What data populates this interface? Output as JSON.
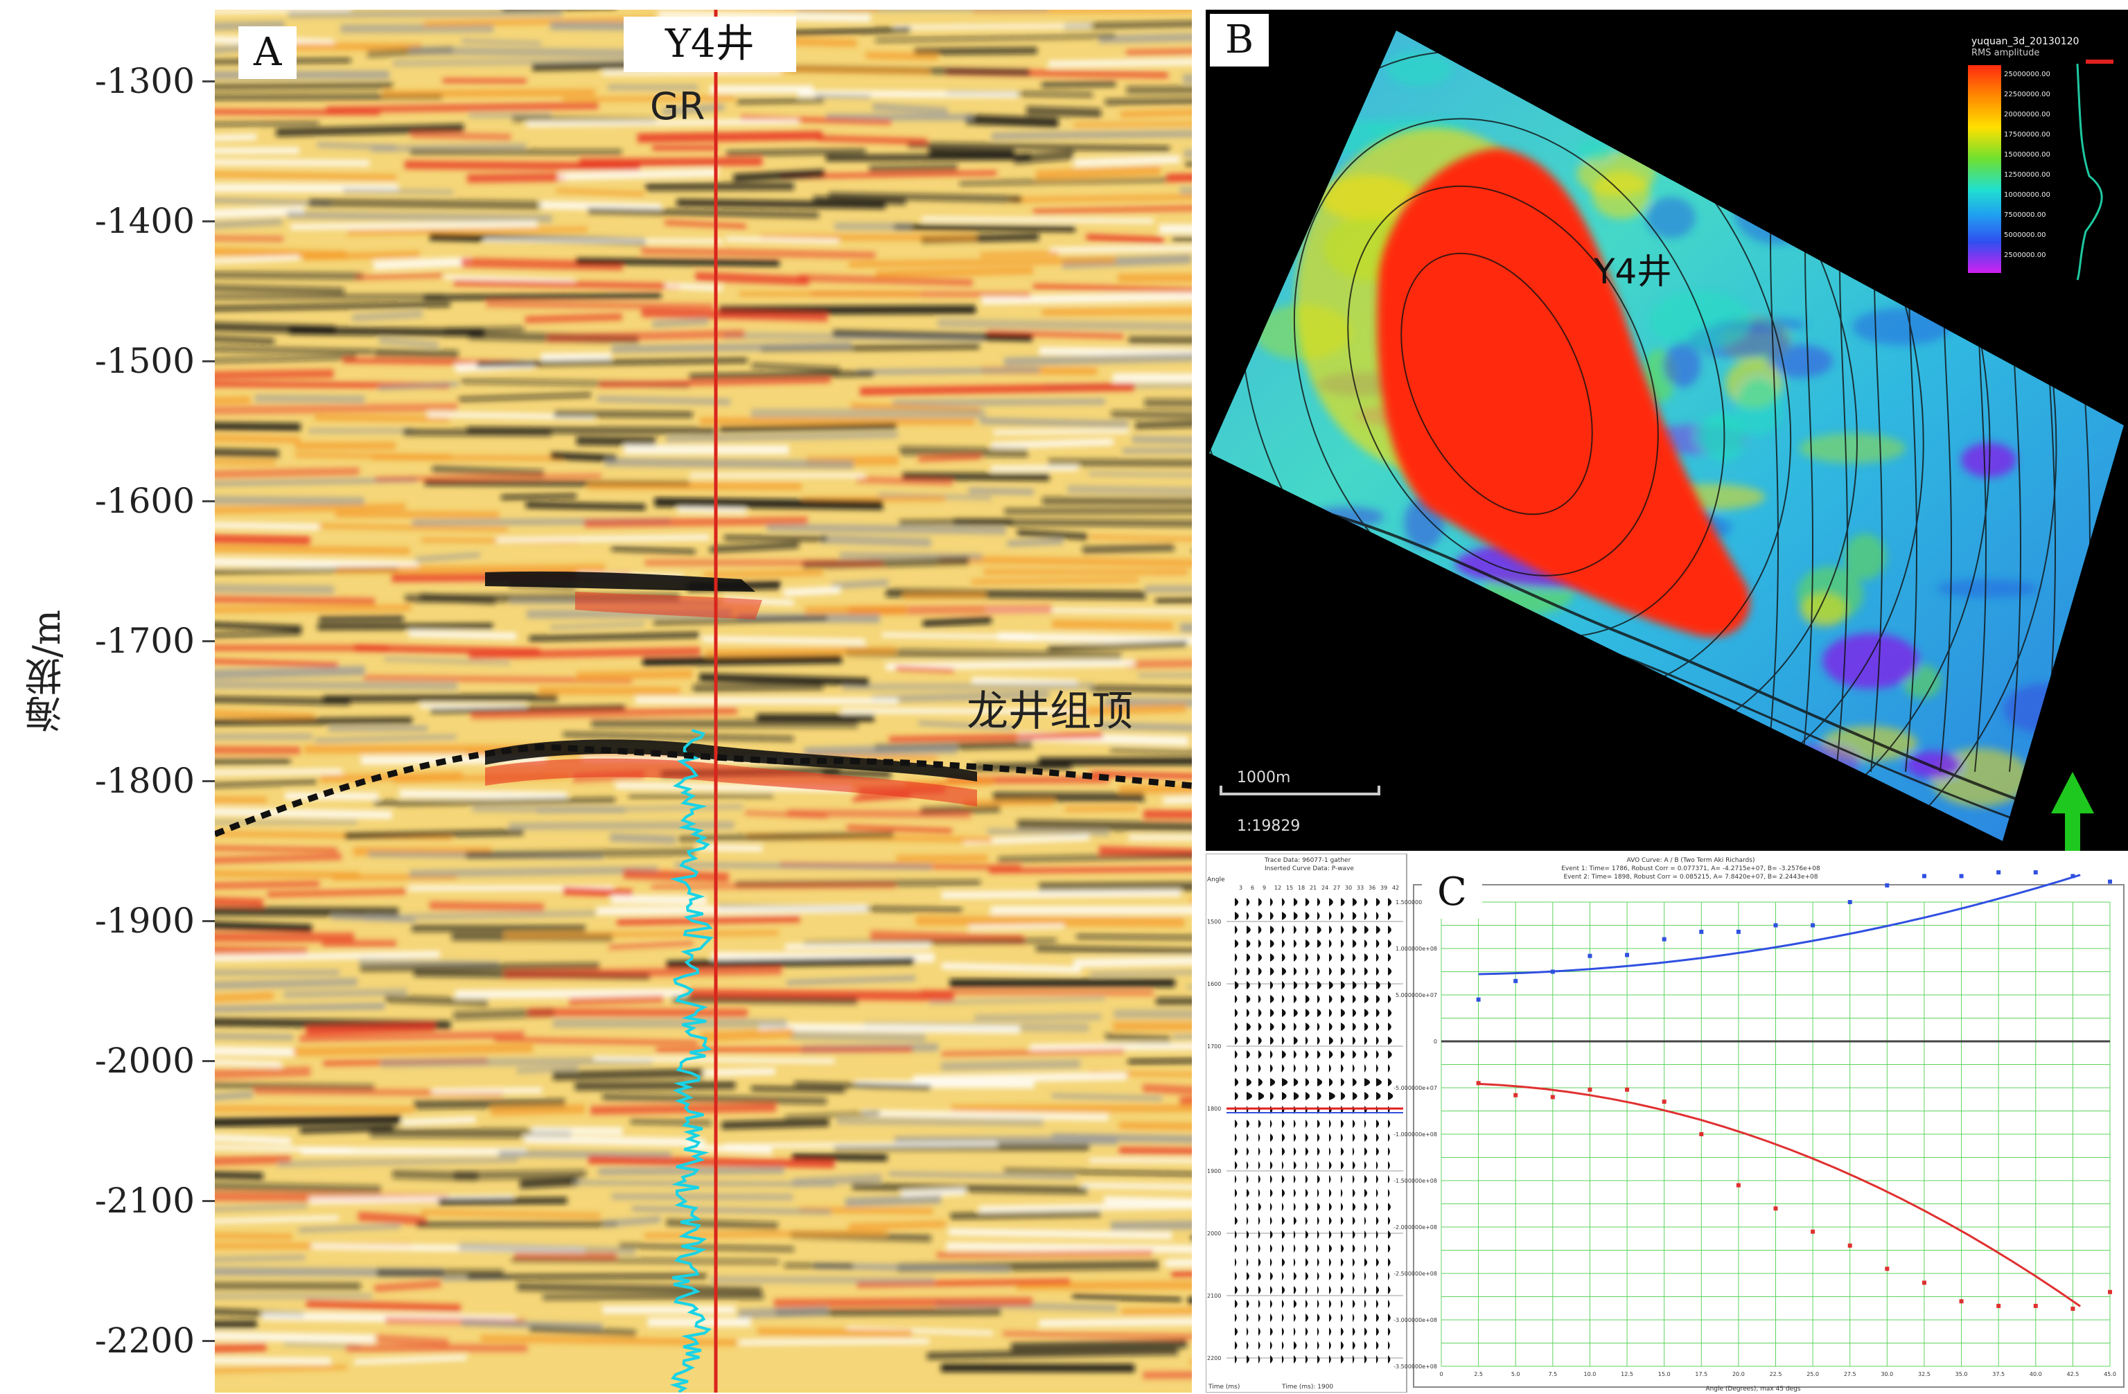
{
  "panel_a": {
    "tag": "A",
    "well_label": "Y4井",
    "curve_label": "GR",
    "horizon_label": "龙井组顶",
    "y_axis_label": "海拔/m",
    "y_ticks": [
      "-1300",
      "-1400",
      "-1500",
      "-1600",
      "-1700",
      "-1800",
      "-1900",
      "-2000",
      "-2100",
      "-2200"
    ],
    "colors": {
      "background": "#f7e7b0",
      "trough": "#111111",
      "peak": "#e8331f",
      "well_line": "#d9251c",
      "gr_curve": "#19d3e6",
      "horizon": "#111111"
    }
  },
  "panel_b": {
    "tag": "B",
    "well_label": "Y4井",
    "scale_bar": "1000m",
    "scale_ratio": "1:19829",
    "legend_title": "yuquan_3d_20130120",
    "legend_subtitle": "RMS amplitude",
    "legend_values": [
      "25000000.00",
      "22500000.00",
      "20000000.00",
      "17500000.00",
      "15000000.00",
      "12500000.00",
      "10000000.00",
      "7500000.00",
      "5000000.00",
      "2500000.00"
    ],
    "north_arrow": "north-arrow-icon"
  },
  "panel_c": {
    "tag": "C",
    "gather_title": "Trace Data: 96077-1 gather",
    "gather_subtitle": "Inserted Curve Data: P-wave",
    "gather_angle_header": "Angle",
    "gather_angle_ticks": [
      "3",
      "6",
      "9",
      "12",
      "15",
      "18",
      "21",
      "24",
      "27",
      "30",
      "33",
      "36",
      "39",
      "42"
    ],
    "gather_time_ticks": [
      "1500",
      "1600",
      "1700",
      "1800",
      "1900",
      "2000",
      "2100",
      "2200"
    ],
    "gather_footer_left": "Time (ms)",
    "gather_footer_right": "Time (ms): 1900",
    "avo_title": "AVO Curve: A / B (Two Term Aki Richards)",
    "avo_event1": "Event 1: Time= 1786, Robust Corr = 0.077371, A= -4.2715e+07, B= -3.2576e+08",
    "avo_event2": "Event 2: Time= 1898, Robust Corr = 0.085215, A= 7.8420e+07, B= 2.2443e+08",
    "avo_y_ticks": [
      "1.500000e+08",
      "1.000000e+08",
      "5.000000e+07",
      "0",
      "-5.000000e+07",
      "-1.000000e+08",
      "-1.500000e+08",
      "-2.000000e+08",
      "-2.500000e+08",
      "-3.000000e+08",
      "-3.500000e+08"
    ],
    "avo_x_ticks": [
      "0",
      "2.5",
      "5.0",
      "7.5",
      "10.0",
      "12.5",
      "15.0",
      "17.5",
      "20.0",
      "22.5",
      "25.0",
      "27.5",
      "30.0",
      "32.5",
      "35.0",
      "37.5",
      "40.0",
      "42.5",
      "45.0"
    ],
    "avo_x_label": "Angle (Degrees), max 45 degs",
    "avo_upper_points": [
      [
        2.5,
        0.45
      ],
      [
        5.0,
        0.65
      ],
      [
        7.5,
        0.75
      ],
      [
        10.0,
        0.92
      ],
      [
        12.5,
        0.93
      ],
      [
        15.0,
        1.1
      ],
      [
        17.5,
        1.18
      ],
      [
        20.0,
        1.18
      ],
      [
        22.5,
        1.25
      ],
      [
        25.0,
        1.25
      ],
      [
        27.5,
        1.5
      ],
      [
        30.0,
        1.68
      ],
      [
        32.5,
        1.78
      ],
      [
        35.0,
        1.78
      ],
      [
        37.5,
        1.82
      ],
      [
        40.0,
        1.82
      ],
      [
        42.5,
        1.78
      ],
      [
        45.0,
        1.72
      ]
    ],
    "avo_lower_points": [
      [
        2.5,
        -0.45
      ],
      [
        5.0,
        -0.58
      ],
      [
        7.5,
        -0.6
      ],
      [
        10.0,
        -0.52
      ],
      [
        12.5,
        -0.52
      ],
      [
        15.0,
        -0.65
      ],
      [
        17.5,
        -1.0
      ],
      [
        20.0,
        -1.55
      ],
      [
        22.5,
        -1.8
      ],
      [
        25.0,
        -2.05
      ],
      [
        27.5,
        -2.2
      ],
      [
        30.0,
        -2.45
      ],
      [
        32.5,
        -2.6
      ],
      [
        35.0,
        -2.8
      ],
      [
        37.5,
        -2.85
      ],
      [
        40.0,
        -2.85
      ],
      [
        42.5,
        -2.88
      ],
      [
        45.0,
        -2.7
      ]
    ],
    "colors": {
      "grid": "#5fd35f",
      "upper": "#3050e0",
      "lower": "#e03030"
    }
  }
}
